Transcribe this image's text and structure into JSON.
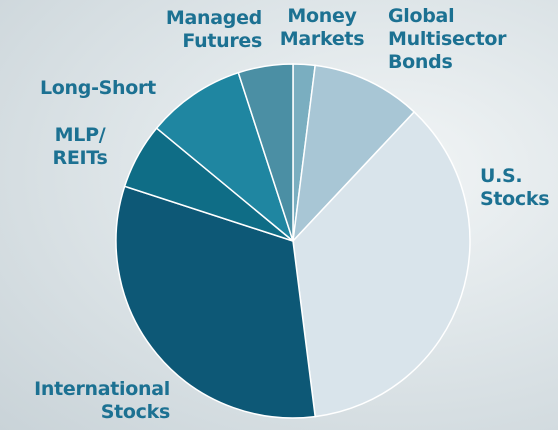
{
  "chart_data": {
    "type": "pie",
    "categories": [
      "Money\nMarkets",
      "Global\nMultisector\nBonds",
      "U.S.\nStocks",
      "International\nStocks",
      "MLP/\nREITs",
      "Long-Short",
      "Managed\nFutures"
    ],
    "values": [
      2,
      10,
      36,
      32,
      6,
      9,
      5
    ],
    "colors": [
      "#7aaec0",
      "#a8c6d5",
      "#d9e4eb",
      "#0d5876",
      "#0f6d86",
      "#1f86a1",
      "#4b8fa4"
    ]
  }
}
